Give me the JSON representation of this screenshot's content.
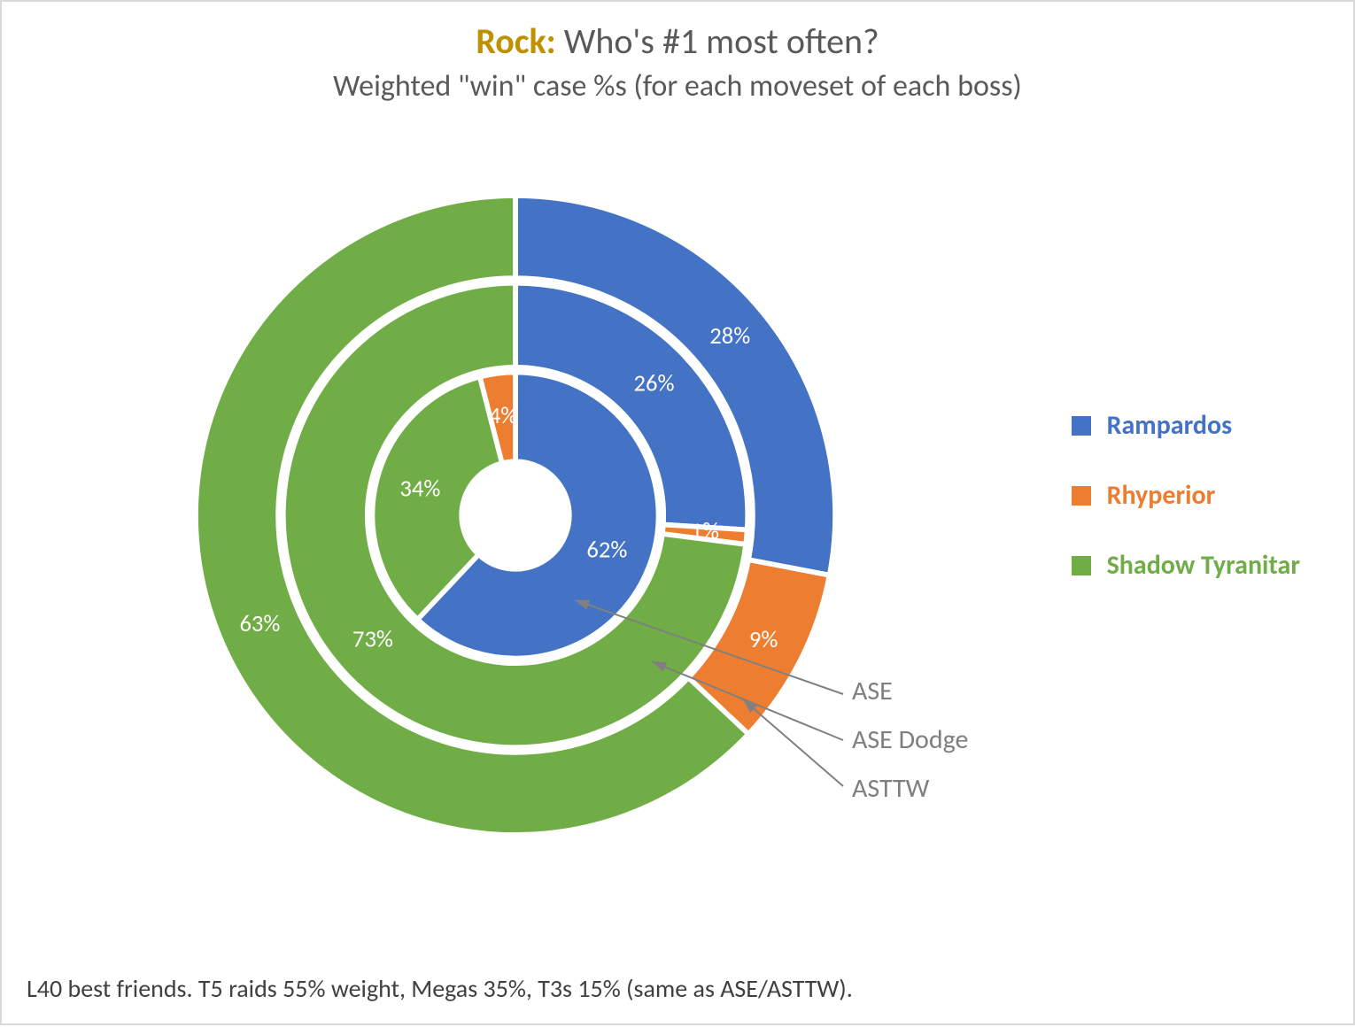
{
  "title": {
    "highlight_text": "Rock:",
    "highlight_color": "#bf9000",
    "rest_text": " Who's #1 most often?",
    "rest_color": "#595959",
    "subtitle": "Weighted \"win\" case %s (for each moveset of each boss)",
    "title_fontsize": 40,
    "subtitle_fontsize": 34
  },
  "footer": "L40 best friends. T5 raids 55% weight, Megas 35%, T3s 15% (same as ASE/ASTTW).",
  "footer_fontsize": 28,
  "chart": {
    "type": "multi-ring-donut",
    "background_color": "#ffffff",
    "ring_gap_color": "#ffffff",
    "ring_gap_width": 6,
    "center_hole_radius": 64,
    "outer_radius": 380,
    "rings": [
      {
        "name": "ASE",
        "order_from_center": 1,
        "inner_r": 64,
        "outer_r": 170,
        "slices": [
          {
            "series": "Rampardos",
            "value": 62,
            "label": "62%"
          },
          {
            "series": "Shadow Tyranitar",
            "value": 34,
            "label": "34%"
          },
          {
            "series": "Rhyperior",
            "value": 4,
            "label": "4%"
          }
        ]
      },
      {
        "name": "ASE Dodge",
        "order_from_center": 2,
        "inner_r": 176,
        "outer_r": 276,
        "slices": [
          {
            "series": "Rampardos",
            "value": 26,
            "label": "26%"
          },
          {
            "series": "Rhyperior",
            "value": 1,
            "label": "1%"
          },
          {
            "series": "Shadow Tyranitar",
            "value": 73,
            "label": "73%"
          }
        ]
      },
      {
        "name": "ASTTW",
        "order_from_center": 3,
        "inner_r": 282,
        "outer_r": 380,
        "slices": [
          {
            "series": "Rampardos",
            "value": 28,
            "label": "28%"
          },
          {
            "series": "Rhyperior",
            "value": 9,
            "label": "9%"
          },
          {
            "series": "Shadow Tyranitar",
            "value": 63,
            "label": "63%"
          }
        ]
      }
    ],
    "series_colors": {
      "Rampardos": "#4472c4",
      "Rhyperior": "#ed7d31",
      "Shadow Tyranitar": "#70ad47"
    },
    "data_label_color": "#ffffff",
    "data_label_fontsize": 28,
    "start_angle_deg": 0
  },
  "legend": {
    "items": [
      {
        "label": "Rampardos",
        "color": "#4472c4"
      },
      {
        "label": "Rhyperior",
        "color": "#ed7d31"
      },
      {
        "label": "Shadow Tyranitar",
        "color": "#70ad47"
      }
    ],
    "label_fontsize": 30,
    "label_fontweight": 700
  },
  "ring_callouts": {
    "items": [
      {
        "label": "ASE"
      },
      {
        "label": "ASE Dodge"
      },
      {
        "label": "ASTTW"
      }
    ],
    "fontsize": 30,
    "color": "#7f7f7f",
    "arrow_color": "#808080"
  }
}
